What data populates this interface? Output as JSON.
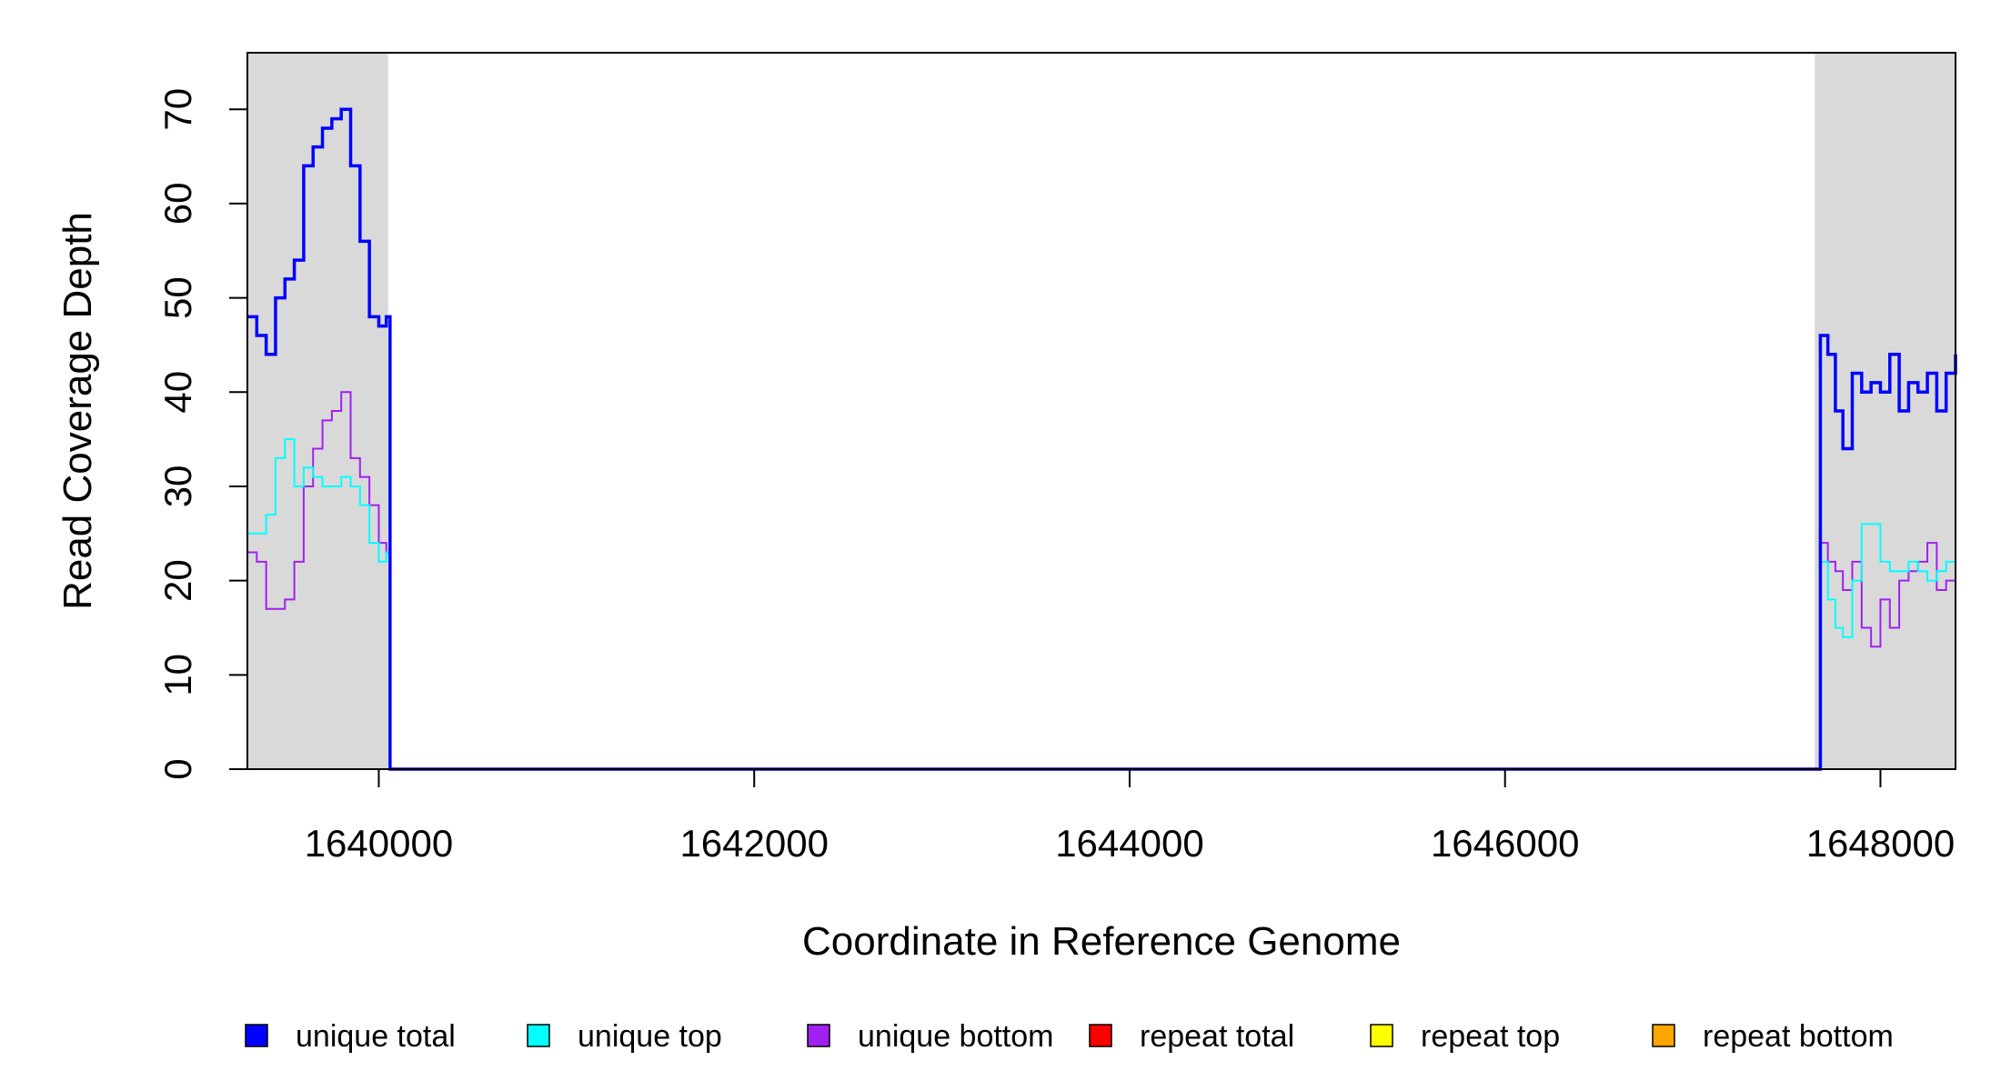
{
  "chart_data": {
    "type": "line",
    "title": "",
    "xlabel": "Coordinate in Reference Genome",
    "ylabel": "Read Coverage Depth",
    "xlim": [
      1639300,
      1648400
    ],
    "ylim": [
      0,
      76
    ],
    "x_ticks": [
      1640000,
      1642000,
      1644000,
      1646000,
      1648000
    ],
    "x_tick_labels": [
      "1640000",
      "1642000",
      "1644000",
      "1646000",
      "1648000"
    ],
    "y_ticks": [
      0,
      10,
      20,
      30,
      40,
      50,
      60,
      70
    ],
    "y_tick_labels": [
      "0",
      "10",
      "20",
      "30",
      "40",
      "50",
      "60",
      "70"
    ],
    "shaded_regions": [
      [
        1639300,
        1640050
      ],
      [
        1647650,
        1648400
      ]
    ],
    "grid": false,
    "legend_position": "bottom",
    "series": [
      {
        "name": "unique total",
        "color": "#0000ff",
        "x": [
          1639300,
          1639350,
          1639400,
          1639450,
          1639500,
          1639550,
          1639600,
          1639650,
          1639700,
          1639750,
          1639800,
          1639850,
          1639900,
          1639950,
          1640000,
          1640040,
          1640060,
          1647660,
          1647680,
          1647720,
          1647760,
          1647800,
          1647850,
          1647900,
          1647950,
          1648000,
          1648050,
          1648100,
          1648150,
          1648200,
          1648250,
          1648300,
          1648350,
          1648400
        ],
        "y": [
          48,
          46,
          44,
          50,
          52,
          54,
          64,
          66,
          68,
          69,
          70,
          64,
          56,
          48,
          47,
          48,
          0,
          0,
          46,
          44,
          38,
          34,
          42,
          40,
          41,
          40,
          44,
          38,
          41,
          40,
          42,
          38,
          42,
          44
        ]
      },
      {
        "name": "unique top",
        "color": "#00ffff",
        "x": [
          1639300,
          1639350,
          1639400,
          1639450,
          1639500,
          1639550,
          1639600,
          1639650,
          1639700,
          1639750,
          1639800,
          1639850,
          1639900,
          1639950,
          1640000,
          1640040,
          1640060,
          1647660,
          1647680,
          1647720,
          1647760,
          1647800,
          1647850,
          1647900,
          1647950,
          1648000,
          1648050,
          1648100,
          1648150,
          1648200,
          1648250,
          1648300,
          1648350,
          1648400
        ],
        "y": [
          25,
          25,
          27,
          33,
          35,
          30,
          32,
          31,
          30,
          30,
          31,
          30,
          28,
          24,
          22,
          23,
          0,
          0,
          22,
          18,
          15,
          14,
          20,
          26,
          26,
          22,
          21,
          21,
          22,
          21,
          20,
          21,
          22,
          23
        ]
      },
      {
        "name": "unique bottom",
        "color": "#a020f0",
        "x": [
          1639300,
          1639350,
          1639400,
          1639450,
          1639500,
          1639550,
          1639600,
          1639650,
          1639700,
          1639750,
          1639800,
          1639850,
          1639900,
          1639950,
          1640000,
          1640040,
          1640060,
          1647660,
          1647680,
          1647720,
          1647760,
          1647800,
          1647850,
          1647900,
          1647950,
          1648000,
          1648050,
          1648100,
          1648150,
          1648200,
          1648250,
          1648300,
          1648350,
          1648400
        ],
        "y": [
          23,
          22,
          17,
          17,
          18,
          22,
          30,
          34,
          37,
          38,
          40,
          33,
          31,
          28,
          24,
          23,
          0,
          0,
          24,
          22,
          21,
          19,
          22,
          15,
          13,
          18,
          15,
          20,
          21,
          22,
          24,
          19,
          20,
          21
        ]
      },
      {
        "name": "repeat total",
        "color": "#ff0000",
        "x": [
          1639300,
          1648400
        ],
        "y": [
          0,
          0
        ]
      },
      {
        "name": "repeat top",
        "color": "#ffff00",
        "x": [
          1639300,
          1648400
        ],
        "y": [
          0,
          0
        ]
      },
      {
        "name": "repeat bottom",
        "color": "#ffa500",
        "x": [
          1639300,
          1648400
        ],
        "y": [
          0,
          0
        ]
      }
    ]
  }
}
